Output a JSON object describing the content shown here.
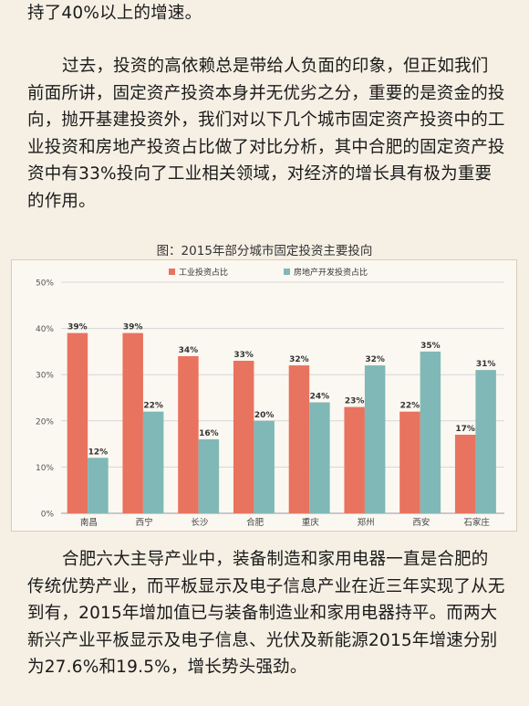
{
  "text": {
    "para_top": "持了40%以上的增速。",
    "para_mid": "过去，投资的高依赖总是带给人负面的印象，但正如我们前面所讲，固定资产投资本身并无优劣之分，重要的是资金的投向，抛开基建投资外，我们对以下几个城市固定资产投资中的工业投资和房地产投资占比做了对比分析，其中合肥的固定资产投资中有33%投向了工业相关领域，对经济的增长具有极为重要的作用。",
    "para_bot": "合肥六大主导产业中，装备制造和家用电器一直是合肥的传统优势产业，而平板显示及电子信息产业在近三年实现了从无到有，2015年增加值已与装备制造业和家用电器持平。而两大新兴产业平板显示及电子信息、光伏及新能源2015年增速分别为27.6%和19.5%，增长势头强劲。"
  },
  "chart_data": {
    "type": "bar",
    "title": "图：2015年部分城市固定投资主要投向",
    "categories": [
      "南昌",
      "西宁",
      "长沙",
      "合肥",
      "重庆",
      "郑州",
      "西安",
      "石家庄"
    ],
    "series": [
      {
        "name": "工业投资占比",
        "values": [
          39,
          39,
          34,
          33,
          32,
          23,
          22,
          17
        ],
        "color": "#e8735f"
      },
      {
        "name": "房地产开发投资占比",
        "values": [
          12,
          22,
          16,
          20,
          24,
          32,
          35,
          31
        ],
        "color": "#7fb8b6"
      }
    ],
    "y_ticks": [
      "0%",
      "10%",
      "20%",
      "30%",
      "40%",
      "50%"
    ],
    "ylim": [
      0,
      50
    ],
    "value_suffix": "%",
    "grid": true,
    "legend_position": "top"
  }
}
